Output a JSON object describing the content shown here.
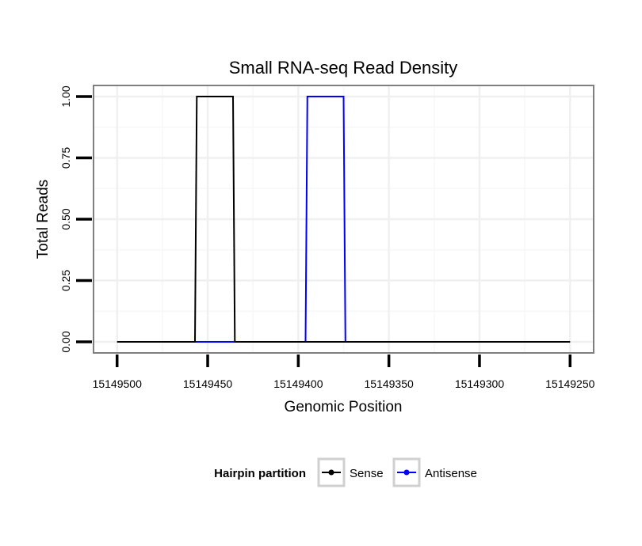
{
  "chart_data": {
    "type": "line",
    "title": "Small RNA-seq Read Density",
    "xlabel": "Genomic Position",
    "ylabel": "Total Reads",
    "xlim": [
      15149513,
      15149237
    ],
    "x_reversed": true,
    "ylim": [
      -0.045,
      1.045
    ],
    "xticks": [
      15149500,
      15149450,
      15149400,
      15149350,
      15149300,
      15149250
    ],
    "xtick_labels": [
      "15149500",
      "15149450",
      "15149400",
      "15149350",
      "15149300",
      "15149250"
    ],
    "yticks": [
      0,
      0.25,
      0.5,
      0.75,
      1.0
    ],
    "ytick_labels": [
      "0.00",
      "0.25",
      "0.50",
      "0.75",
      "1.00"
    ],
    "grid": true,
    "legend": {
      "title": "Hairpin partition",
      "position": "bottom",
      "entries": [
        "Sense",
        "Antisense"
      ]
    },
    "series": [
      {
        "name": "Sense",
        "color": "#000000",
        "x": [
          15149500,
          15149457,
          15149456,
          15149436,
          15149435,
          15149250
        ],
        "y": [
          0,
          0,
          1,
          1,
          0,
          0
        ]
      },
      {
        "name": "Antisense",
        "color": "#0000ff",
        "x": [
          15149457,
          15149396,
          15149395,
          15149375,
          15149374,
          15149366
        ],
        "y": [
          0,
          0,
          1,
          1,
          0,
          0
        ]
      }
    ]
  }
}
